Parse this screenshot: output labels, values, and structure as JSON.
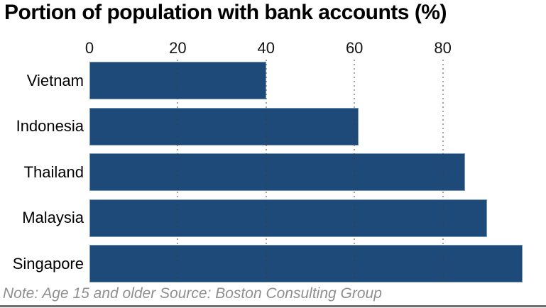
{
  "chart": {
    "title": "Portion of population with bank accounts (%)",
    "note": "Note: Age 15 and older Source: Boston Consulting Group"
  },
  "chart_data": {
    "type": "bar",
    "orientation": "horizontal",
    "title": "Portion of population with bank accounts (%)",
    "categories": [
      "Vietnam",
      "Indonesia",
      "Thailand",
      "Malaysia",
      "Singapore"
    ],
    "values": [
      40,
      61,
      85,
      90,
      98
    ],
    "xlim": [
      0,
      100
    ],
    "xticks": [
      0,
      20,
      40,
      60,
      80
    ],
    "xlabel": "",
    "ylabel": "",
    "legend": "none",
    "grid": "vertical-dotted",
    "bar_color": "#1d4a78",
    "note": "Note: Age 15 and older Source: Boston Consulting Group"
  }
}
